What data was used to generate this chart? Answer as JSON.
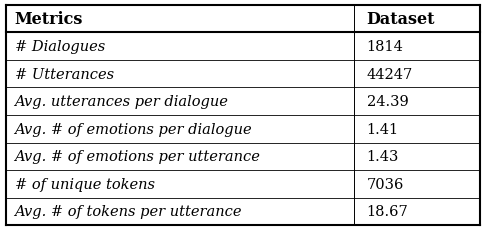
{
  "headers": [
    "Metrics",
    "Dataset"
  ],
  "rows": [
    [
      "# Dialogues",
      "1814"
    ],
    [
      "# Utterances",
      "44247"
    ],
    [
      "Avg. utterances per dialogue",
      "24.39"
    ],
    [
      "Avg. # of emotions per dialogue",
      "1.41"
    ],
    [
      "Avg. # of emotions per utterance",
      "1.43"
    ],
    [
      "# of unique tokens",
      "7036"
    ],
    [
      "Avg. # of tokens per utterance",
      "18.67"
    ]
  ],
  "header_fontsize": 11.5,
  "row_fontsize": 10.5,
  "col_split": 0.735,
  "bg_color": "#ffffff",
  "line_color": "#000000",
  "text_color": "#000000",
  "fig_width": 4.86,
  "fig_height": 2.32,
  "dpi": 100
}
